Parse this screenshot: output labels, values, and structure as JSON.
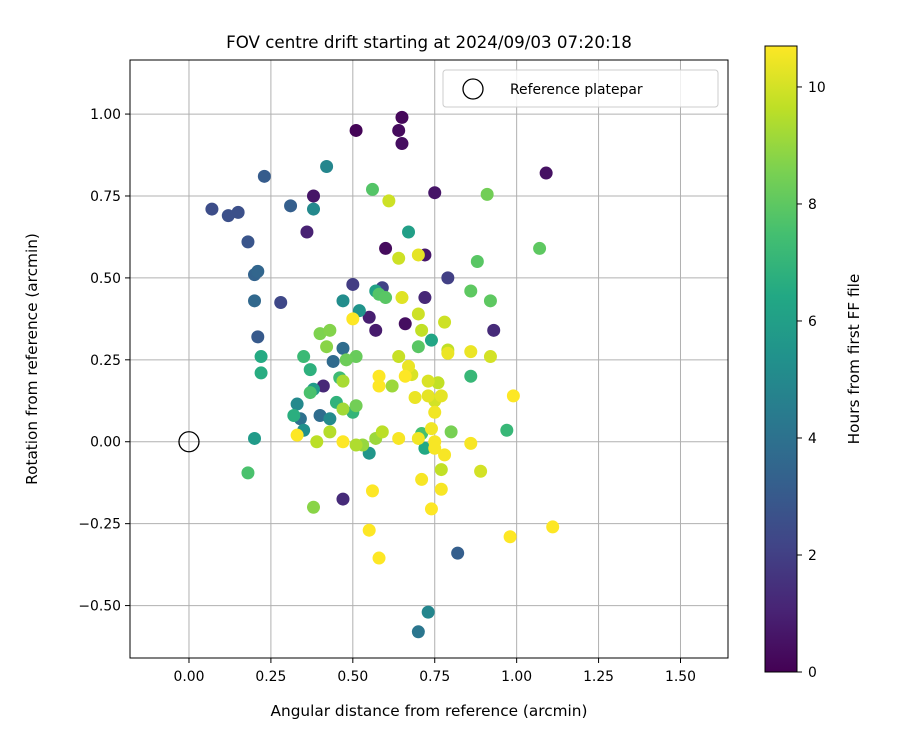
{
  "chart_data": {
    "type": "scatter",
    "title": "FOV centre drift starting at 2024/09/03 07:20:18",
    "xlabel": "Angular distance from reference (arcmin)",
    "ylabel": "Rotation from reference (arcmin)",
    "xlim": [
      -0.18,
      1.645
    ],
    "ylim": [
      -0.66,
      1.165
    ],
    "xticks": [
      0.0,
      0.25,
      0.5,
      0.75,
      1.0,
      1.25,
      1.5
    ],
    "xtick_labels": [
      "0.00",
      "0.25",
      "0.50",
      "0.75",
      "1.00",
      "1.25",
      "1.50"
    ],
    "yticks": [
      -0.5,
      -0.25,
      0.0,
      0.25,
      0.5,
      0.75,
      1.0
    ],
    "ytick_labels": [
      "−0.50",
      "−0.25",
      "0.00",
      "0.25",
      "0.50",
      "0.75",
      "1.00"
    ],
    "grid": true,
    "legend": {
      "location": "upper right",
      "entries": [
        "Reference platepar"
      ]
    },
    "reference_point": {
      "x": 0.0,
      "y": 0.0
    },
    "colorbar": {
      "label": "Hours from first FF file",
      "colormap": "viridis",
      "range": [
        0,
        10.7
      ],
      "ticks": [
        0,
        2,
        4,
        6,
        8,
        10
      ],
      "tick_labels": [
        "0",
        "2",
        "4",
        "6",
        "8",
        "10"
      ]
    },
    "points": [
      {
        "x": 0.51,
        "y": 0.95,
        "h": 0.1
      },
      {
        "x": 0.65,
        "y": 0.99,
        "h": 0.2
      },
      {
        "x": 0.64,
        "y": 0.95,
        "h": 0.3
      },
      {
        "x": 0.65,
        "y": 0.91,
        "h": 0.4
      },
      {
        "x": 1.09,
        "y": 0.82,
        "h": 0.5
      },
      {
        "x": 0.38,
        "y": 0.75,
        "h": 0.6
      },
      {
        "x": 0.75,
        "y": 0.76,
        "h": 0.6
      },
      {
        "x": 0.36,
        "y": 0.64,
        "h": 1.0
      },
      {
        "x": 0.6,
        "y": 0.59,
        "h": 0.3
      },
      {
        "x": 0.72,
        "y": 0.57,
        "h": 0.7
      },
      {
        "x": 0.66,
        "y": 0.36,
        "h": 0.4
      },
      {
        "x": 0.57,
        "y": 0.34,
        "h": 0.8
      },
      {
        "x": 0.55,
        "y": 0.38,
        "h": 0.9
      },
      {
        "x": 0.72,
        "y": 0.44,
        "h": 1.2
      },
      {
        "x": 0.93,
        "y": 0.34,
        "h": 1.3
      },
      {
        "x": 0.41,
        "y": 0.17,
        "h": 1.2
      },
      {
        "x": 0.47,
        "y": -0.175,
        "h": 1.3
      },
      {
        "x": 0.5,
        "y": 0.48,
        "h": 1.9
      },
      {
        "x": 0.79,
        "y": 0.5,
        "h": 2.0
      },
      {
        "x": 0.59,
        "y": 0.47,
        "h": 2.1
      },
      {
        "x": 0.28,
        "y": 0.425,
        "h": 2.3
      },
      {
        "x": 0.07,
        "y": 0.71,
        "h": 2.5
      },
      {
        "x": 0.12,
        "y": 0.69,
        "h": 2.6
      },
      {
        "x": 0.15,
        "y": 0.7,
        "h": 2.6
      },
      {
        "x": 0.18,
        "y": 0.61,
        "h": 2.8
      },
      {
        "x": 0.21,
        "y": 0.32,
        "h": 3.0
      },
      {
        "x": 0.23,
        "y": 0.81,
        "h": 3.1
      },
      {
        "x": 0.31,
        "y": 0.72,
        "h": 3.2
      },
      {
        "x": 0.82,
        "y": -0.34,
        "h": 3.2
      },
      {
        "x": 0.2,
        "y": 0.51,
        "h": 3.4
      },
      {
        "x": 0.21,
        "y": 0.52,
        "h": 3.5
      },
      {
        "x": 0.2,
        "y": 0.43,
        "h": 3.6
      },
      {
        "x": 0.44,
        "y": 0.245,
        "h": 3.7
      },
      {
        "x": 0.4,
        "y": 0.08,
        "h": 3.8
      },
      {
        "x": 0.47,
        "y": 0.285,
        "h": 3.8
      },
      {
        "x": 0.34,
        "y": 0.07,
        "h": 4.0
      },
      {
        "x": 0.7,
        "y": -0.58,
        "h": 4.2
      },
      {
        "x": 0.73,
        "y": -0.52,
        "h": 4.9
      },
      {
        "x": 0.42,
        "y": 0.84,
        "h": 4.9
      },
      {
        "x": 0.38,
        "y": 0.71,
        "h": 5.0
      },
      {
        "x": 0.33,
        "y": 0.115,
        "h": 5.0
      },
      {
        "x": 0.43,
        "y": 0.07,
        "h": 5.1
      },
      {
        "x": 0.47,
        "y": 0.43,
        "h": 5.2
      },
      {
        "x": 0.35,
        "y": 0.035,
        "h": 5.3
      },
      {
        "x": 0.52,
        "y": 0.4,
        "h": 5.5
      },
      {
        "x": 0.55,
        "y": -0.035,
        "h": 5.6
      },
      {
        "x": 0.2,
        "y": 0.01,
        "h": 5.8
      },
      {
        "x": 0.38,
        "y": 0.16,
        "h": 5.8
      },
      {
        "x": 0.67,
        "y": 0.64,
        "h": 6.0
      },
      {
        "x": 0.57,
        "y": 0.46,
        "h": 6.1
      },
      {
        "x": 0.74,
        "y": 0.31,
        "h": 6.3
      },
      {
        "x": 0.72,
        "y": -0.02,
        "h": 6.4
      },
      {
        "x": 0.22,
        "y": 0.26,
        "h": 6.5
      },
      {
        "x": 0.22,
        "y": 0.21,
        "h": 6.6
      },
      {
        "x": 0.32,
        "y": 0.08,
        "h": 6.7
      },
      {
        "x": 0.37,
        "y": 0.22,
        "h": 6.8
      },
      {
        "x": 0.45,
        "y": 0.12,
        "h": 6.9
      },
      {
        "x": 0.5,
        "y": 0.09,
        "h": 7.0
      },
      {
        "x": 0.86,
        "y": 0.2,
        "h": 7.1
      },
      {
        "x": 0.97,
        "y": 0.035,
        "h": 7.1
      },
      {
        "x": 0.35,
        "y": 0.26,
        "h": 7.2
      },
      {
        "x": 0.46,
        "y": 0.195,
        "h": 7.3
      },
      {
        "x": 0.71,
        "y": 0.025,
        "h": 7.5
      },
      {
        "x": 0.18,
        "y": -0.095,
        "h": 7.6
      },
      {
        "x": 0.37,
        "y": 0.15,
        "h": 7.6
      },
      {
        "x": 0.56,
        "y": 0.77,
        "h": 7.8
      },
      {
        "x": 0.58,
        "y": 0.45,
        "h": 7.8
      },
      {
        "x": 0.6,
        "y": 0.44,
        "h": 7.9
      },
      {
        "x": 0.7,
        "y": 0.29,
        "h": 7.9
      },
      {
        "x": 0.88,
        "y": 0.55,
        "h": 7.9
      },
      {
        "x": 0.86,
        "y": 0.46,
        "h": 8.0
      },
      {
        "x": 0.92,
        "y": 0.43,
        "h": 8.0
      },
      {
        "x": 1.07,
        "y": 0.59,
        "h": 8.0
      },
      {
        "x": 0.91,
        "y": 0.755,
        "h": 8.4
      },
      {
        "x": 0.51,
        "y": 0.26,
        "h": 8.2
      },
      {
        "x": 0.48,
        "y": 0.25,
        "h": 8.3
      },
      {
        "x": 0.51,
        "y": 0.11,
        "h": 8.4
      },
      {
        "x": 0.8,
        "y": 0.03,
        "h": 8.5
      },
      {
        "x": 0.4,
        "y": 0.33,
        "h": 8.6
      },
      {
        "x": 0.43,
        "y": 0.34,
        "h": 8.7
      },
      {
        "x": 0.42,
        "y": 0.29,
        "h": 8.8
      },
      {
        "x": 0.38,
        "y": -0.2,
        "h": 8.8
      },
      {
        "x": 0.53,
        "y": -0.01,
        "h": 9.0
      },
      {
        "x": 0.57,
        "y": 0.01,
        "h": 9.1
      },
      {
        "x": 0.62,
        "y": 0.17,
        "h": 9.1
      },
      {
        "x": 0.47,
        "y": 0.1,
        "h": 9.2
      },
      {
        "x": 0.47,
        "y": 0.185,
        "h": 9.3
      },
      {
        "x": 0.51,
        "y": -0.01,
        "h": 9.4
      },
      {
        "x": 0.43,
        "y": 0.03,
        "h": 9.5
      },
      {
        "x": 0.39,
        "y": 0.0,
        "h": 9.6
      },
      {
        "x": 0.59,
        "y": 0.03,
        "h": 9.6
      },
      {
        "x": 0.76,
        "y": 0.18,
        "h": 9.7
      },
      {
        "x": 0.79,
        "y": 0.28,
        "h": 9.7
      },
      {
        "x": 0.71,
        "y": 0.34,
        "h": 9.7
      },
      {
        "x": 0.77,
        "y": -0.085,
        "h": 9.7
      },
      {
        "x": 0.64,
        "y": 0.26,
        "h": 9.8
      },
      {
        "x": 0.61,
        "y": 0.735,
        "h": 9.9
      },
      {
        "x": 0.64,
        "y": 0.56,
        "h": 9.9
      },
      {
        "x": 0.7,
        "y": 0.39,
        "h": 9.9
      },
      {
        "x": 0.78,
        "y": 0.365,
        "h": 9.9
      },
      {
        "x": 0.92,
        "y": 0.26,
        "h": 10.0
      },
      {
        "x": 0.75,
        "y": 0.125,
        "h": 10.0
      },
      {
        "x": 0.89,
        "y": -0.09,
        "h": 10.0
      },
      {
        "x": 0.68,
        "y": 0.205,
        "h": 10.1
      },
      {
        "x": 0.73,
        "y": 0.185,
        "h": 10.1
      },
      {
        "x": 0.65,
        "y": 0.44,
        "h": 10.2
      },
      {
        "x": 0.7,
        "y": 0.57,
        "h": 10.3
      },
      {
        "x": 0.73,
        "y": 0.14,
        "h": 10.3
      },
      {
        "x": 0.77,
        "y": 0.14,
        "h": 10.3
      },
      {
        "x": 0.67,
        "y": 0.23,
        "h": 10.4
      },
      {
        "x": 0.79,
        "y": 0.27,
        "h": 10.4
      },
      {
        "x": 0.86,
        "y": 0.275,
        "h": 10.4
      },
      {
        "x": 0.69,
        "y": 0.135,
        "h": 10.4
      },
      {
        "x": 0.75,
        "y": 0.09,
        "h": 10.5
      },
      {
        "x": 0.74,
        "y": 0.04,
        "h": 10.5
      },
      {
        "x": 0.7,
        "y": 0.01,
        "h": 10.5
      },
      {
        "x": 0.64,
        "y": 0.01,
        "h": 10.6
      },
      {
        "x": 0.75,
        "y": 0.0,
        "h": 10.6
      },
      {
        "x": 0.78,
        "y": -0.04,
        "h": 10.6
      },
      {
        "x": 0.86,
        "y": -0.005,
        "h": 10.6
      },
      {
        "x": 0.75,
        "y": -0.02,
        "h": 10.6
      },
      {
        "x": 0.71,
        "y": -0.115,
        "h": 10.6
      },
      {
        "x": 0.77,
        "y": -0.145,
        "h": 10.6
      },
      {
        "x": 0.74,
        "y": -0.205,
        "h": 10.7
      },
      {
        "x": 0.56,
        "y": -0.15,
        "h": 10.7
      },
      {
        "x": 0.55,
        "y": -0.27,
        "h": 10.7
      },
      {
        "x": 0.58,
        "y": -0.355,
        "h": 10.7
      },
      {
        "x": 0.98,
        "y": -0.29,
        "h": 10.7
      },
      {
        "x": 1.11,
        "y": -0.26,
        "h": 10.7
      },
      {
        "x": 0.99,
        "y": 0.14,
        "h": 10.7
      },
      {
        "x": 0.33,
        "y": 0.02,
        "h": 10.7
      },
      {
        "x": 0.5,
        "y": 0.375,
        "h": 10.7
      },
      {
        "x": 0.66,
        "y": 0.2,
        "h": 10.7
      },
      {
        "x": 0.58,
        "y": 0.17,
        "h": 10.7
      },
      {
        "x": 0.58,
        "y": 0.2,
        "h": 10.7
      },
      {
        "x": 0.47,
        "y": 0.0,
        "h": 10.7
      }
    ]
  }
}
